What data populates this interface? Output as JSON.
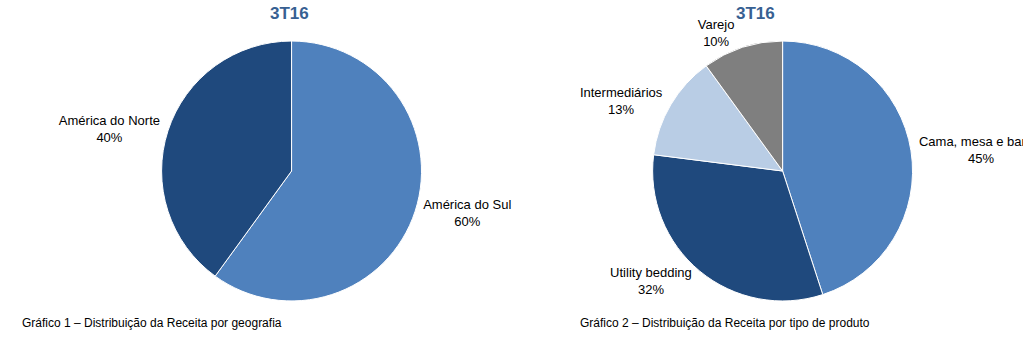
{
  "chart_data": [
    {
      "type": "pie",
      "title": "3T16",
      "caption": "Gráfico 1 – Distribuição da Receita por geografia",
      "categories": [
        "América do Sul",
        "América do Norte"
      ],
      "values": [
        60,
        40
      ],
      "value_labels": [
        "60%",
        "40%"
      ],
      "colors": [
        "#4f81bd",
        "#1f497d"
      ],
      "data_labels": true
    },
    {
      "type": "pie",
      "title": "3T16",
      "caption": "Gráfico 2 – Distribuição da Receita por tipo de produto",
      "categories": [
        "Cama, mesa e banho",
        "Utility bedding",
        "Intermediários",
        "Varejo"
      ],
      "values": [
        45,
        32,
        13,
        10
      ],
      "value_labels": [
        "45%",
        "32%",
        "13%",
        "10%"
      ],
      "colors": [
        "#4f81bd",
        "#1f497d",
        "#b9cde5",
        "#7f7f7f"
      ],
      "data_labels": true
    }
  ]
}
